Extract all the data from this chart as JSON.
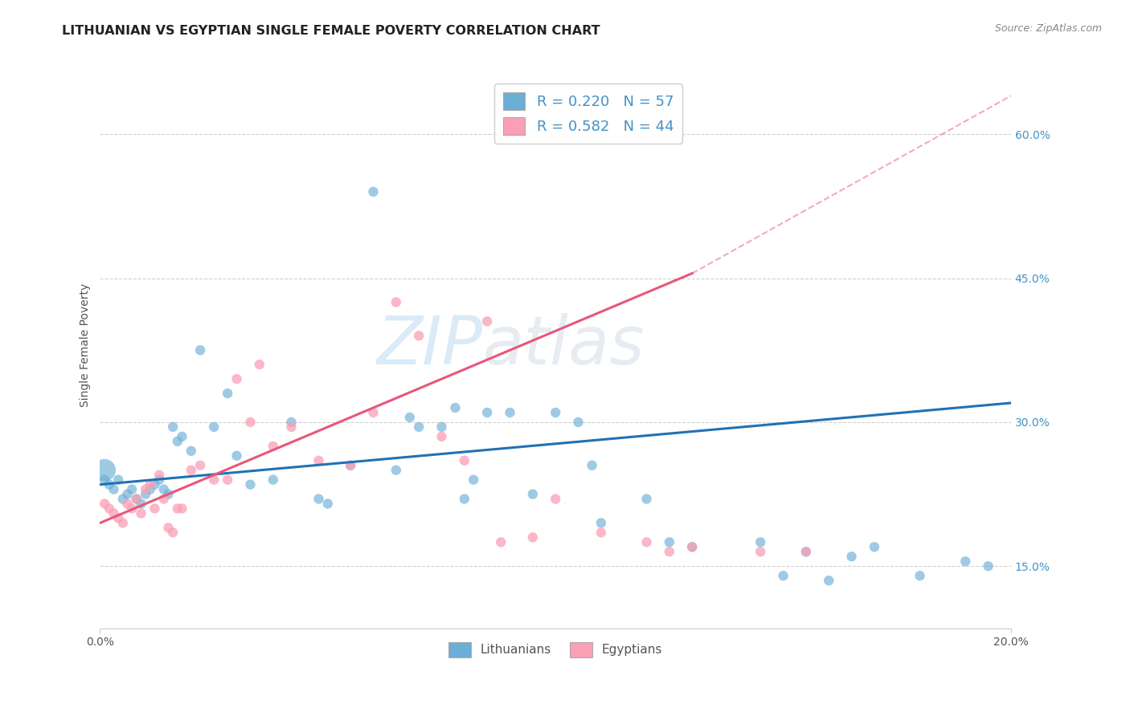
{
  "title": "LITHUANIAN VS EGYPTIAN SINGLE FEMALE POVERTY CORRELATION CHART",
  "source": "Source: ZipAtlas.com",
  "ylabel": "Single Female Poverty",
  "ytick_labels": [
    "15.0%",
    "30.0%",
    "45.0%",
    "60.0%"
  ],
  "ytick_values": [
    0.15,
    0.3,
    0.45,
    0.6
  ],
  "xlim": [
    0.0,
    0.2
  ],
  "ylim": [
    0.085,
    0.675
  ],
  "legend_blue_r": "R = 0.220",
  "legend_blue_n": "N = 57",
  "legend_pink_r": "R = 0.582",
  "legend_pink_n": "N = 44",
  "blue_color": "#6baed6",
  "pink_color": "#fa9fb5",
  "blue_line_color": "#2171b5",
  "pink_line_color": "#e9567b",
  "dash_color": "#e9567b",
  "watermark_zip": "ZIP",
  "watermark_atlas": "atlas",
  "legend_label_blue": "Lithuanians",
  "legend_label_pink": "Egyptians",
  "blue_scatter_x": [
    0.001,
    0.001,
    0.002,
    0.003,
    0.004,
    0.005,
    0.006,
    0.007,
    0.008,
    0.009,
    0.01,
    0.011,
    0.012,
    0.013,
    0.014,
    0.015,
    0.016,
    0.017,
    0.018,
    0.02,
    0.022,
    0.025,
    0.028,
    0.03,
    0.033,
    0.038,
    0.042,
    0.048,
    0.05,
    0.055,
    0.06,
    0.065,
    0.068,
    0.07,
    0.075,
    0.078,
    0.08,
    0.082,
    0.085,
    0.09,
    0.095,
    0.1,
    0.105,
    0.108,
    0.11,
    0.12,
    0.125,
    0.13,
    0.145,
    0.15,
    0.155,
    0.16,
    0.165,
    0.17,
    0.18,
    0.19,
    0.195
  ],
  "blue_scatter_y": [
    0.24,
    0.25,
    0.235,
    0.23,
    0.24,
    0.22,
    0.225,
    0.23,
    0.22,
    0.215,
    0.225,
    0.23,
    0.235,
    0.24,
    0.23,
    0.225,
    0.295,
    0.28,
    0.285,
    0.27,
    0.375,
    0.295,
    0.33,
    0.265,
    0.235,
    0.24,
    0.3,
    0.22,
    0.215,
    0.255,
    0.54,
    0.25,
    0.305,
    0.295,
    0.295,
    0.315,
    0.22,
    0.24,
    0.31,
    0.31,
    0.225,
    0.31,
    0.3,
    0.255,
    0.195,
    0.22,
    0.175,
    0.17,
    0.175,
    0.14,
    0.165,
    0.135,
    0.16,
    0.17,
    0.14,
    0.155,
    0.15
  ],
  "blue_scatter_sizes": [
    80,
    400,
    80,
    80,
    80,
    80,
    80,
    80,
    80,
    80,
    80,
    80,
    80,
    80,
    80,
    80,
    80,
    80,
    80,
    80,
    80,
    80,
    80,
    80,
    80,
    80,
    80,
    80,
    80,
    80,
    80,
    80,
    80,
    80,
    80,
    80,
    80,
    80,
    80,
    80,
    80,
    80,
    80,
    80,
    80,
    80,
    80,
    80,
    80,
    80,
    80,
    80,
    80,
    80,
    80,
    80,
    80
  ],
  "pink_scatter_x": [
    0.001,
    0.002,
    0.003,
    0.004,
    0.005,
    0.006,
    0.007,
    0.008,
    0.009,
    0.01,
    0.011,
    0.012,
    0.013,
    0.014,
    0.015,
    0.016,
    0.017,
    0.018,
    0.02,
    0.022,
    0.025,
    0.028,
    0.03,
    0.033,
    0.035,
    0.038,
    0.042,
    0.048,
    0.055,
    0.06,
    0.065,
    0.07,
    0.075,
    0.08,
    0.085,
    0.088,
    0.095,
    0.1,
    0.11,
    0.12,
    0.125,
    0.13,
    0.145,
    0.155
  ],
  "pink_scatter_y": [
    0.215,
    0.21,
    0.205,
    0.2,
    0.195,
    0.215,
    0.21,
    0.22,
    0.205,
    0.23,
    0.235,
    0.21,
    0.245,
    0.22,
    0.19,
    0.185,
    0.21,
    0.21,
    0.25,
    0.255,
    0.24,
    0.24,
    0.345,
    0.3,
    0.36,
    0.275,
    0.295,
    0.26,
    0.255,
    0.31,
    0.425,
    0.39,
    0.285,
    0.26,
    0.405,
    0.175,
    0.18,
    0.22,
    0.185,
    0.175,
    0.165,
    0.17,
    0.165,
    0.165
  ],
  "pink_scatter_sizes": [
    80,
    80,
    80,
    80,
    80,
    80,
    80,
    80,
    80,
    80,
    80,
    80,
    80,
    80,
    80,
    80,
    80,
    80,
    80,
    80,
    80,
    80,
    80,
    80,
    80,
    80,
    80,
    80,
    80,
    80,
    80,
    80,
    80,
    80,
    80,
    80,
    80,
    80,
    80,
    80,
    80,
    80,
    80,
    80
  ],
  "blue_line_x0": 0.0,
  "blue_line_y0": 0.235,
  "blue_line_x1": 0.2,
  "blue_line_y1": 0.32,
  "pink_line_x0": 0.0,
  "pink_line_y0": 0.195,
  "pink_line_x1": 0.13,
  "pink_line_y1": 0.455,
  "dash_line_x0": 0.13,
  "dash_line_y0": 0.455,
  "dash_line_x1": 0.2,
  "dash_line_y1": 0.64
}
